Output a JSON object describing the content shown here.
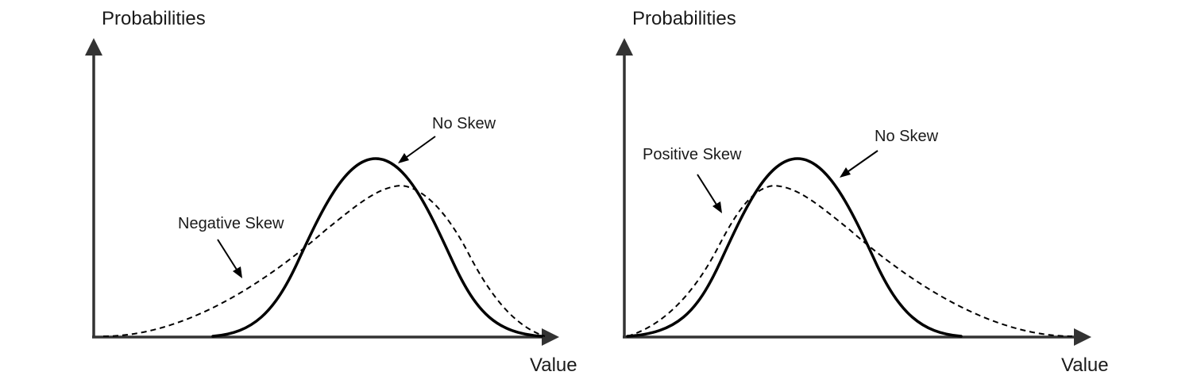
{
  "panels": [
    {
      "id": "left",
      "y_axis_label": "Probabilities",
      "x_axis_label": "Value",
      "annotations": [
        {
          "key": "no_skew",
          "label": "No Skew",
          "line_style": "solid"
        },
        {
          "key": "skewed",
          "label": "Negative Skew",
          "line_style": "dashed"
        }
      ]
    },
    {
      "id": "right",
      "y_axis_label": "Probabilities",
      "x_axis_label": "Value",
      "annotations": [
        {
          "key": "skewed",
          "label": "Positive Skew",
          "line_style": "dashed"
        },
        {
          "key": "no_skew",
          "label": "No Skew",
          "line_style": "solid"
        }
      ]
    }
  ],
  "colors": {
    "ink": "#000000",
    "axis": "#333333",
    "background": "#ffffff"
  }
}
